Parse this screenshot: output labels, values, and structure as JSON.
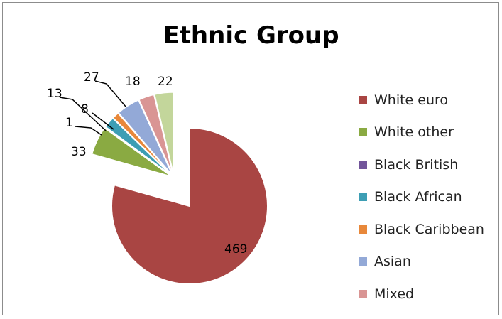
{
  "chart_data": {
    "type": "pie",
    "title": "Ethnic Group",
    "exploded": true,
    "legend_position": "right",
    "slices": [
      {
        "label": "White euro",
        "value": 469,
        "color": "#A94543"
      },
      {
        "label": "White other",
        "value": 33,
        "color": "#8AAA42"
      },
      {
        "label": "Black British",
        "value": 1,
        "color": "#72559A"
      },
      {
        "label": "Black African",
        "value": 13,
        "color": "#3D9EB4"
      },
      {
        "label": "Black Caribbean",
        "value": 8,
        "color": "#E8883A"
      },
      {
        "label": "Asian",
        "value": 27,
        "color": "#93A9D7"
      },
      {
        "label": "Mixed",
        "value": 18,
        "color": "#D99594"
      },
      {
        "label": "",
        "value": 22,
        "color": "#C3D69B"
      }
    ]
  }
}
